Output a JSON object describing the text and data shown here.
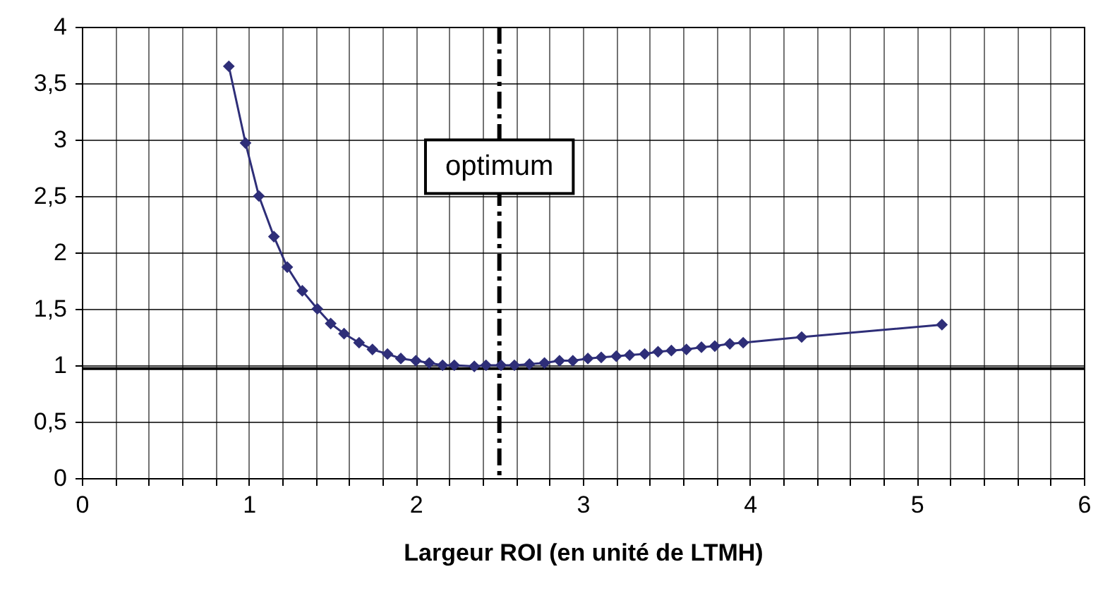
{
  "chart_data": {
    "type": "line",
    "xlabel": "Largeur ROI (en unité de LTMH)",
    "x": [
      0.88,
      0.98,
      1.06,
      1.15,
      1.23,
      1.32,
      1.41,
      1.49,
      1.57,
      1.66,
      1.74,
      1.83,
      1.91,
      2.0,
      2.08,
      2.16,
      2.23,
      2.35,
      2.42,
      2.51,
      2.59,
      2.68,
      2.77,
      2.86,
      2.94,
      3.03,
      3.11,
      3.2,
      3.28,
      3.37,
      3.45,
      3.53,
      3.62,
      3.71,
      3.79,
      3.88,
      3.96,
      4.31,
      5.15
    ],
    "series": [
      {
        "color": "#2e2e78",
        "values": [
          3.65,
          2.97,
          2.5,
          2.14,
          1.87,
          1.66,
          1.5,
          1.37,
          1.28,
          1.2,
          1.14,
          1.1,
          1.06,
          1.04,
          1.02,
          1.0,
          1.0,
          0.99,
          1.0,
          1.0,
          1.0,
          1.01,
          1.02,
          1.04,
          1.04,
          1.06,
          1.07,
          1.08,
          1.09,
          1.1,
          1.12,
          1.13,
          1.14,
          1.16,
          1.17,
          1.19,
          1.2,
          1.25,
          1.36
        ]
      }
    ],
    "xlim": [
      0,
      6
    ],
    "xticks": [
      0,
      {
        "value": 0.2,
        "label": null
      },
      {
        "value": 0.4,
        "label": null
      },
      {
        "value": 0.6,
        "label": null
      },
      {
        "value": 0.8,
        "label": null
      },
      1,
      {
        "value": 1.2,
        "label": null
      },
      {
        "value": 1.4,
        "label": null
      },
      {
        "value": 1.6,
        "label": null
      },
      {
        "value": 1.8,
        "label": null
      },
      2,
      {
        "value": 2.2,
        "label": null
      },
      {
        "value": 2.4,
        "label": null
      },
      {
        "value": 2.6,
        "label": null
      },
      {
        "value": 2.8,
        "label": null
      },
      3,
      {
        "value": 3.2,
        "label": null
      },
      {
        "value": 3.4,
        "label": null
      },
      {
        "value": 3.6,
        "label": null
      },
      {
        "value": 3.8,
        "label": null
      },
      4,
      {
        "value": 4.2,
        "label": null
      },
      {
        "value": 4.4,
        "label": null
      },
      {
        "value": 4.6,
        "label": null
      },
      {
        "value": 4.8,
        "label": null
      },
      5,
      {
        "value": 5.2,
        "label": null
      },
      {
        "value": 5.4,
        "label": null
      },
      {
        "value": 5.6,
        "label": null
      },
      {
        "value": 5.8,
        "label": null
      },
      6
    ],
    "ylim": [
      0,
      4
    ],
    "yticks": [
      0,
      {
        "value": 0.5,
        "label": "0,5"
      },
      1,
      {
        "value": 1.5,
        "label": "1,5"
      },
      2,
      {
        "value": 2.5,
        "label": "2,5"
      },
      3,
      {
        "value": 3.5,
        "label": "3,5"
      },
      4
    ],
    "ref_lines": [
      {
        "axis": "y",
        "value": 0.97,
        "color": "#000000",
        "line_style": "solid"
      },
      {
        "axis": "x",
        "value": 2.5,
        "label": "optimum",
        "color": "#000000",
        "line_style": "dashed"
      }
    ],
    "grid": true,
    "marker": "diamond",
    "line_style": "solid"
  }
}
